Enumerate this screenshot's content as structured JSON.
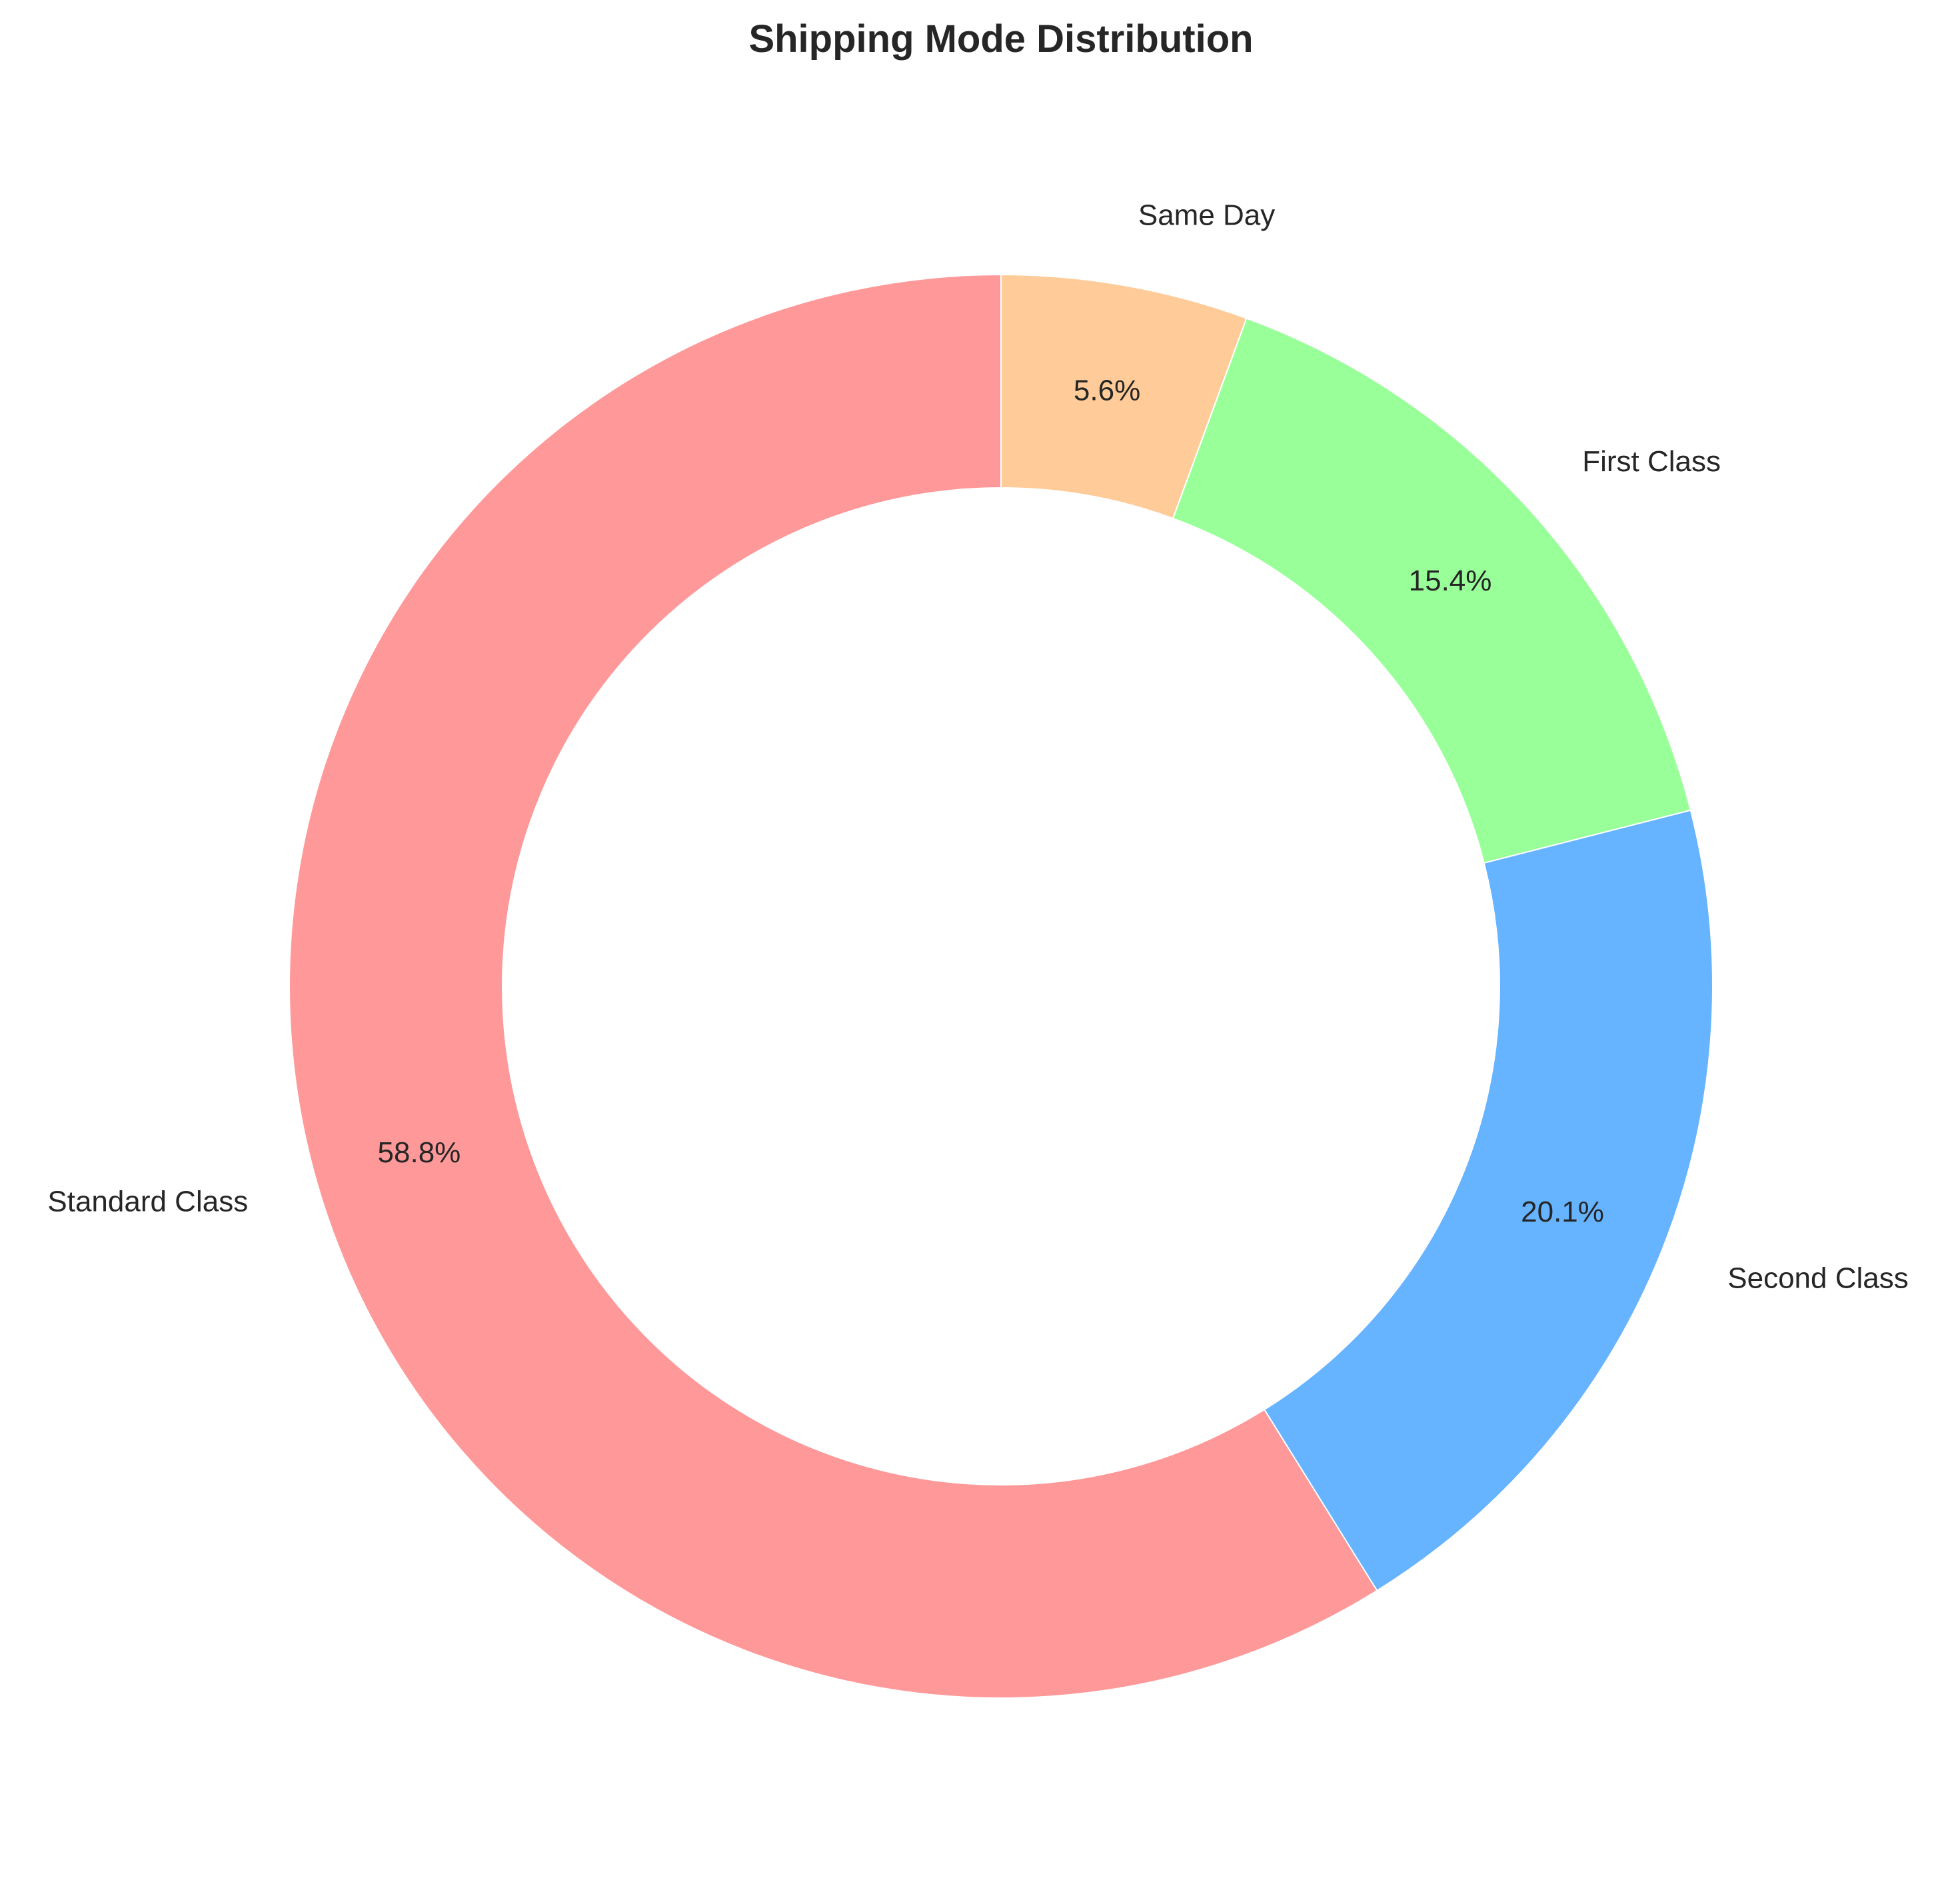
{
  "chart_data": {
    "type": "pie",
    "title": "Shipping Mode Distribution",
    "donut": true,
    "start_angle_deg": 90,
    "direction": "clockwise",
    "slices": [
      {
        "label": "Same Day",
        "value": 5.6,
        "value_label": "5.6%",
        "color": "#FFCC99"
      },
      {
        "label": "First Class",
        "value": 15.4,
        "value_label": "15.4%",
        "color": "#99FF99"
      },
      {
        "label": "Second Class",
        "value": 20.1,
        "value_label": "20.1%",
        "color": "#66B3FF"
      },
      {
        "label": "Standard Class",
        "value": 58.8,
        "value_label": "58.8%",
        "color": "#FF9999"
      }
    ]
  }
}
